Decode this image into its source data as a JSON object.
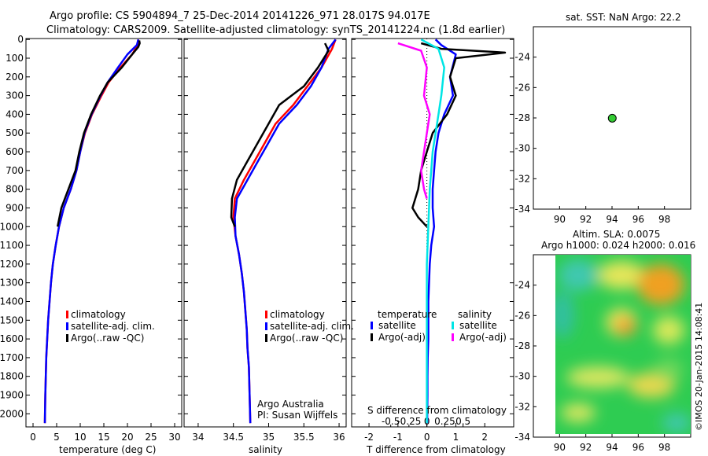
{
  "header": {
    "line1": "Argo profile: CS 5904894_7 25-Dec-2014 20141226_971 28.017S 94.017E",
    "line2": "Climatology: CARS2009. Satellite-adjusted climatology: synTS_20141224.nc (1.8d earlier)"
  },
  "panel_temp": {
    "xlabel": "temperature (deg C)",
    "legend": [
      "climatology",
      "satellite-adj. clim.",
      "Argo(..raw -QC)"
    ]
  },
  "panel_sal": {
    "xlabel": "salinity",
    "legend": [
      "climatology",
      "satellite-adj. clim.",
      "Argo(..raw -QC)"
    ],
    "credit1": "Argo Australia",
    "credit2": "PI: Susan Wijffels"
  },
  "panel_diff": {
    "xlabel": "T difference from climatology",
    "top_label": "S difference from climatology",
    "legend_temp_title": "temperature",
    "legend_sal_title": "salinity",
    "legend_temp": [
      "satellite",
      "Argo(-adj)"
    ],
    "legend_sal": [
      "satellite",
      "Argo(-adj)"
    ]
  },
  "map_sst": {
    "title": "sat. SST: NaN Argo: 22.2"
  },
  "map_sla": {
    "title1": "Altim. SLA: 0.0075",
    "title2": "Argo h1000: 0.024 h2000: 0.016"
  },
  "side_label": "©IMOS 20-Jan-2015 14:08:41",
  "colors": {
    "climatology": "#ff0000",
    "satellite": "#0000ff",
    "argo": "#000000",
    "sal_satellite": "#00e5e5",
    "sal_argo": "#ff00ff",
    "argo_marker": "#33cc33"
  },
  "chart_data": [
    {
      "type": "line",
      "panel": "temperature",
      "y_name": "depth",
      "xlabel": "temperature (deg C)",
      "xlim": [
        -1.5,
        31.5
      ],
      "ylim": [
        2070,
        -5
      ],
      "xticks": [
        0,
        5,
        10,
        15,
        20,
        25,
        30
      ],
      "yticks": [
        0,
        100,
        200,
        300,
        400,
        500,
        600,
        700,
        800,
        900,
        1000,
        1100,
        1200,
        1300,
        1400,
        1500,
        1600,
        1700,
        1800,
        1900,
        2000
      ],
      "series": [
        {
          "name": "climatology",
          "color": "#ff0000",
          "x": [
            22.3,
            22.2,
            21.0,
            18.5,
            16.0,
            14.5,
            12.5,
            11.0,
            10.0,
            9.2,
            8.0,
            6.5,
            5.5,
            4.8,
            4.2,
            3.8,
            3.5,
            3.2,
            3.0,
            2.8,
            2.6,
            2.5
          ],
          "y": [
            0,
            30,
            80,
            150,
            230,
            300,
            400,
            500,
            600,
            700,
            800,
            900,
            1000,
            1100,
            1200,
            1300,
            1400,
            1500,
            1600,
            1700,
            1900,
            2050
          ]
        },
        {
          "name": "satellite-adj. clim.",
          "color": "#0000ff",
          "x": [
            22.3,
            22.0,
            20.0,
            18.0,
            15.8,
            14.3,
            12.4,
            10.9,
            10.0,
            9.2,
            8.0,
            6.5,
            5.5,
            4.8,
            4.2,
            3.8,
            3.5,
            3.2,
            3.0,
            2.8,
            2.6,
            2.5
          ],
          "y": [
            0,
            30,
            80,
            150,
            230,
            300,
            400,
            500,
            600,
            700,
            800,
            900,
            1000,
            1100,
            1200,
            1300,
            1400,
            1500,
            1600,
            1700,
            1900,
            2050
          ]
        },
        {
          "name": "Argo(..raw -QC)",
          "color": "#000000",
          "x": [
            22.5,
            22.6,
            22.3,
            21.0,
            18.8,
            15.8,
            14.2,
            12.3,
            10.8,
            9.8,
            9.0,
            7.5,
            6.0,
            5.2
          ],
          "y": [
            5,
            20,
            40,
            80,
            150,
            230,
            300,
            400,
            500,
            600,
            700,
            800,
            900,
            1000
          ]
        }
      ]
    },
    {
      "type": "line",
      "panel": "salinity",
      "y_name": "depth",
      "xlabel": "salinity",
      "xlim": [
        33.8,
        36.1
      ],
      "ylim": [
        2070,
        -5
      ],
      "xticks": [
        34,
        34.5,
        35,
        35.5,
        36
      ],
      "series": [
        {
          "name": "climatology",
          "color": "#ff0000",
          "x": [
            35.95,
            35.9,
            35.75,
            35.55,
            35.35,
            35.1,
            34.95,
            34.8,
            34.65,
            34.52,
            34.5,
            34.53,
            34.58,
            34.62,
            34.65,
            34.67,
            34.69,
            34.7,
            34.72,
            34.73,
            34.74
          ],
          "y": [
            0,
            50,
            150,
            250,
            350,
            450,
            550,
            650,
            750,
            850,
            950,
            1050,
            1150,
            1250,
            1350,
            1450,
            1550,
            1650,
            1750,
            1900,
            2050
          ]
        },
        {
          "name": "satellite-adj. clim.",
          "color": "#0000ff",
          "x": [
            35.95,
            35.85,
            35.75,
            35.6,
            35.4,
            35.15,
            35.0,
            34.85,
            34.7,
            34.55,
            34.52,
            34.53,
            34.58,
            34.62,
            34.65,
            34.67,
            34.69,
            34.7,
            34.72,
            34.73,
            34.74
          ],
          "y": [
            0,
            50,
            150,
            250,
            350,
            450,
            550,
            650,
            750,
            850,
            950,
            1050,
            1150,
            1250,
            1350,
            1450,
            1550,
            1650,
            1750,
            1900,
            2050
          ]
        },
        {
          "name": "Argo(..raw -QC)",
          "color": "#000000",
          "x": [
            35.8,
            35.85,
            35.7,
            35.5,
            35.15,
            35.0,
            34.85,
            34.7,
            34.55,
            34.48,
            34.47,
            34.52
          ],
          "y": [
            20,
            60,
            150,
            250,
            350,
            450,
            550,
            650,
            750,
            850,
            950,
            1000
          ]
        }
      ]
    },
    {
      "type": "line",
      "panel": "differences",
      "y_name": "depth",
      "xlabel": "T difference from climatology",
      "xlim": [
        -2.6,
        3.0
      ],
      "ylim": [
        2070,
        -5
      ],
      "xticks": [
        -2,
        -1,
        0,
        1,
        2
      ],
      "top_axis": {
        "label": "S difference from climatology",
        "ticks": [
          "-0.5",
          "-0.25",
          "0",
          "0.25",
          "0.5"
        ]
      },
      "series": [
        {
          "name": "temperature satellite",
          "color": "#0000ff",
          "x": [
            0.3,
            0.5,
            1.0,
            0.8,
            0.9,
            0.6,
            0.4,
            0.3,
            0.25,
            0.2,
            0.2,
            0.25,
            0.15,
            0.1,
            0.05,
            0.05,
            0.03,
            0.02,
            0.02,
            0.01
          ],
          "y": [
            0,
            30,
            80,
            200,
            300,
            400,
            500,
            600,
            700,
            800,
            900,
            1000,
            1100,
            1200,
            1400,
            1600,
            1700,
            1800,
            1900,
            2050
          ]
        },
        {
          "name": "temperature Argo(-adj)",
          "color": "#000000",
          "x": [
            -0.2,
            0.5,
            2.7,
            1.0,
            0.8,
            1.0,
            0.7,
            0.2,
            0.0,
            -0.2,
            -0.3,
            -0.5,
            -0.3,
            0.0
          ],
          "y": [
            20,
            50,
            70,
            100,
            200,
            300,
            400,
            500,
            600,
            700,
            800,
            900,
            950,
            1000
          ]
        },
        {
          "name": "salinity satellite",
          "color": "#00e5e5",
          "x": [
            -0.2,
            0.4,
            0.6,
            0.5,
            0.4,
            0.3,
            0.2,
            0.15,
            0.1,
            0.05,
            0.0,
            0.0,
            0.0,
            0.0
          ],
          "y": [
            0,
            50,
            150,
            300,
            400,
            500,
            600,
            700,
            800,
            1000,
            1200,
            1500,
            1800,
            2050
          ]
        },
        {
          "name": "salinity Argo(-adj)",
          "color": "#ff00ff",
          "x": [
            -1.0,
            -0.2,
            0.0,
            -0.1,
            0.1,
            0.0,
            -0.1,
            -0.2,
            -0.1,
            0.0
          ],
          "y": [
            20,
            60,
            150,
            300,
            400,
            500,
            600,
            700,
            800,
            850
          ]
        }
      ]
    },
    {
      "type": "scatter",
      "panel": "sst_map",
      "title": "sat. SST: NaN Argo: 22.2",
      "xlim": [
        88,
        100
      ],
      "ylim": [
        -34,
        -22
      ],
      "xticks": [
        90,
        92,
        94,
        96,
        98
      ],
      "yticks": [
        -24,
        -26,
        -28,
        -30,
        -32,
        -34
      ],
      "points": [
        {
          "x": 94.017,
          "y": -28.017
        }
      ]
    },
    {
      "type": "heatmap",
      "panel": "sla_map",
      "title": "Altim. SLA: 0.0075 / Argo h1000: 0.024 h2000: 0.016",
      "xlim": [
        88,
        100
      ],
      "ylim": [
        -34,
        -22
      ],
      "xticks": [
        90,
        92,
        94,
        96,
        98
      ],
      "yticks": [
        -24,
        -26,
        -28,
        -30,
        -32,
        -34
      ],
      "points": [
        {
          "x": 94.017,
          "y": -28.017
        }
      ]
    }
  ]
}
